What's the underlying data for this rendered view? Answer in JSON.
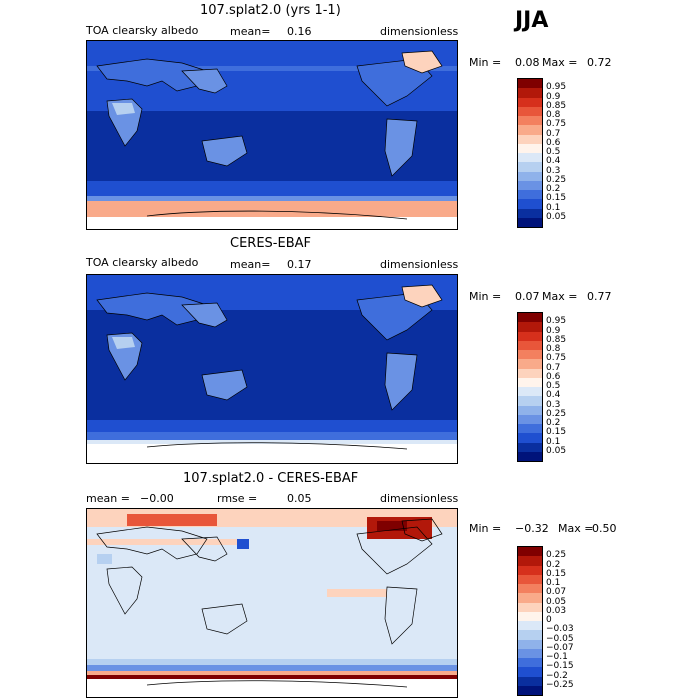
{
  "season": "JJA",
  "panels": [
    {
      "title": "107.splat2.0 (yrs 1-1)",
      "variable": "TOA clearsky albedo",
      "mean_label": "mean=",
      "mean_value": "0.16",
      "units": "dimensionless",
      "min_label": "Min =",
      "min_value": "0.08",
      "max_label": "Max =",
      "max_value": "0.72",
      "colorbar": [
        "0.95",
        "0.9",
        "0.85",
        "0.8",
        "0.75",
        "0.7",
        "0.6",
        "0.5",
        "0.4",
        "0.3",
        "0.25",
        "0.2",
        "0.15",
        "0.1",
        "0.05"
      ]
    },
    {
      "title": "CERES-EBAF",
      "variable": "TOA clearsky albedo",
      "mean_label": "mean=",
      "mean_value": "0.17",
      "units": "dimensionless",
      "min_label": "Min =",
      "min_value": "0.07",
      "max_label": "Max =",
      "max_value": "0.77",
      "colorbar": [
        "0.95",
        "0.9",
        "0.85",
        "0.8",
        "0.75",
        "0.7",
        "0.6",
        "0.5",
        "0.4",
        "0.3",
        "0.25",
        "0.2",
        "0.15",
        "0.1",
        "0.05"
      ]
    },
    {
      "title": "107.splat2.0 - CERES-EBAF",
      "mean_label": "mean =",
      "mean_value": "−0.00",
      "rmse_label": "rmse =",
      "rmse_value": "0.05",
      "units": "dimensionless",
      "min_label": "Min =",
      "min_value": "−0.32",
      "max_label": "Max =",
      "max_value": "0.50",
      "colorbar": [
        "0.25",
        "0.2",
        "0.15",
        "0.1",
        "0.07",
        "0.05",
        "0.03",
        "0",
        "−0.03",
        "−0.05",
        "−0.07",
        "−0.1",
        "−0.15",
        "−0.2",
        "−0.25"
      ]
    }
  ],
  "colors": {
    "albedo_scale": [
      "#7f0000",
      "#b2180a",
      "#d6301c",
      "#e8563a",
      "#f3805f",
      "#f9aa8a",
      "#fdd3bd",
      "#fff4ec",
      "#dbe8f7",
      "#b6d0f0",
      "#8fb2ea",
      "#6a92e4",
      "#3f6edc",
      "#1f4fd0",
      "#0a2f9f",
      "#00137a"
    ],
    "diff_scale": [
      "#7f0000",
      "#b2180a",
      "#d6301c",
      "#e8563a",
      "#f3805f",
      "#f9aa8a",
      "#fdd3bd",
      "#fff4ec",
      "#dbe8f7",
      "#b6d0f0",
      "#8fb2ea",
      "#6a92e4",
      "#3f6edc",
      "#1f4fd0",
      "#0a2f9f",
      "#00137a"
    ]
  }
}
